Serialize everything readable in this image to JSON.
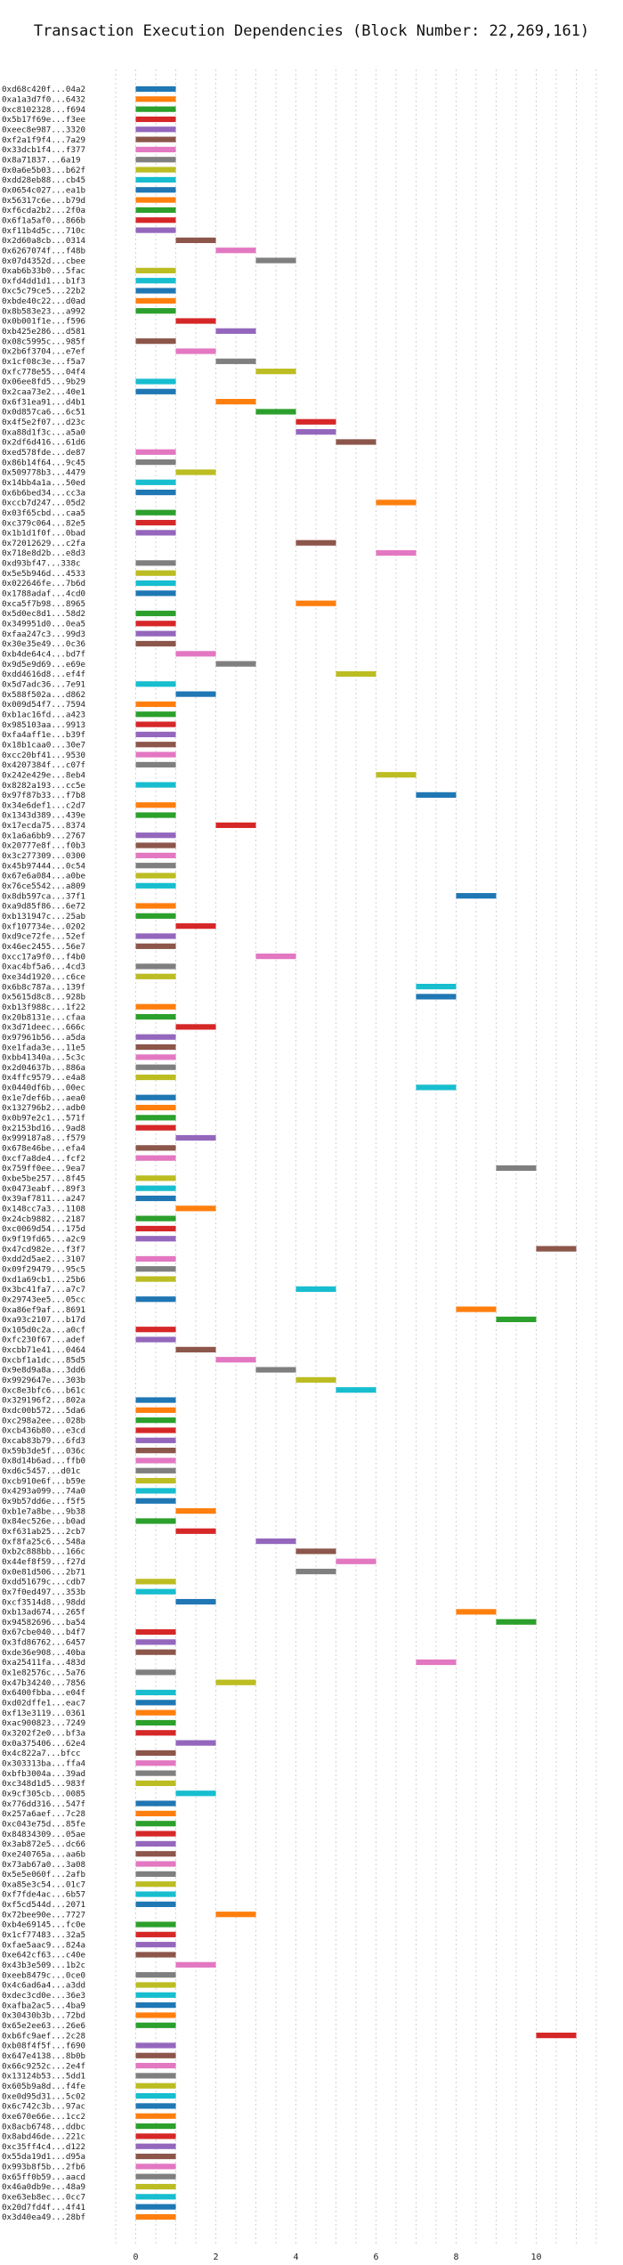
{
  "chart_data": {
    "type": "bar",
    "orientation": "horizontal",
    "title": "Transaction Execution Dependencies (Block Number: 22,269,161)",
    "xlabel": "",
    "ylabel": "",
    "xlim": [
      -0.5,
      11.5
    ],
    "xticks": [
      0,
      2,
      4,
      6,
      8,
      10
    ],
    "grid": true,
    "palette": [
      "#1f77b4",
      "#ff7f0e",
      "#2ca02c",
      "#d62728",
      "#9467bd",
      "#8c564b",
      "#e377c2",
      "#7f7f7f",
      "#bcbd22",
      "#17becf"
    ],
    "rows": [
      [
        "0xd68c420f...04a2",
        0
      ],
      [
        "0xa1a3d7f0...6432",
        0
      ],
      [
        "0xc8102328...f694",
        0
      ],
      [
        "0x5b17f69e...f3ee",
        0
      ],
      [
        "0xeec8e987...3320",
        0
      ],
      [
        "0xf2a1f9f4...7a29",
        0
      ],
      [
        "0x33dcb1f4...f377",
        0
      ],
      [
        "0x8a71837...6a19",
        0
      ],
      [
        "0x0a6e5b03...b62f",
        0
      ],
      [
        "0xdd28eb88...cb45",
        0
      ],
      [
        "0x0654c027...ea1b",
        0
      ],
      [
        "0x56317c6e...b79d",
        0
      ],
      [
        "0xf6cda2b2...2f0a",
        0
      ],
      [
        "0x6f1a5af0...866b",
        0
      ],
      [
        "0xf11b4d5c...710c",
        0
      ],
      [
        "0x2d60a8cb...0314",
        1
      ],
      [
        "0x6267074f...f48b",
        2
      ],
      [
        "0x07d4352d...cbee",
        3
      ],
      [
        "0xab6b33b0...5fac",
        0
      ],
      [
        "0xfd4dd1d1...b1f3",
        0
      ],
      [
        "0xc5c79ce5...22b2",
        0
      ],
      [
        "0xbde40c22...d0ad",
        0
      ],
      [
        "0x8b583e23...a992",
        0
      ],
      [
        "0x0b001f1e...f596",
        1
      ],
      [
        "0xb425e286...d581",
        2
      ],
      [
        "0x08c5995c...985f",
        0
      ],
      [
        "0x2b6f3704...e7ef",
        1
      ],
      [
        "0x1cf08c3e...f5a7",
        2
      ],
      [
        "0xfc778e55...04f4",
        3
      ],
      [
        "0x06ee8fd5...9b29",
        0
      ],
      [
        "0x2caa73e2...40e1",
        0
      ],
      [
        "0x6f31ea91...d4b1",
        2
      ],
      [
        "0x0d857ca6...6c51",
        3
      ],
      [
        "0x4f5e2f07...d23c",
        4
      ],
      [
        "0xa88d1f3c...a5a0",
        4
      ],
      [
        "0x2df6d416...61d6",
        5
      ],
      [
        "0xed578fde...de87",
        0
      ],
      [
        "0x86b14f64...9c45",
        0
      ],
      [
        "0x509778b3...4479",
        1
      ],
      [
        "0x14bb4a1a...50ed",
        0
      ],
      [
        "0x6b6bed34...cc3a",
        0
      ],
      [
        "0xccb7d247...05d2",
        6
      ],
      [
        "0x03f65cbd...caa5",
        0
      ],
      [
        "0xc379c064...82e5",
        0
      ],
      [
        "0x1b1d1f0f...0bad",
        0
      ],
      [
        "0x72012629...c2fa",
        4
      ],
      [
        "0x718e8d2b...e8d3",
        6
      ],
      [
        "0xd93bf47...338c",
        0
      ],
      [
        "0x5e5b946d...4533",
        0
      ],
      [
        "0x022646fe...7b6d",
        0
      ],
      [
        "0x1788adaf...4cd0",
        0
      ],
      [
        "0xca5f7b98...8965",
        4
      ],
      [
        "0x5d0ec8d1...58d2",
        0
      ],
      [
        "0x349951d0...0ea5",
        0
      ],
      [
        "0xfaa247c3...99d3",
        0
      ],
      [
        "0x30e35e49...0c36",
        0
      ],
      [
        "0xb4de64c4...bd7f",
        1
      ],
      [
        "0x9d5e9d69...e69e",
        2
      ],
      [
        "0xdd4616d8...ef4f",
        5
      ],
      [
        "0x5d7adc36...7e91",
        0
      ],
      [
        "0x588f502a...d862",
        1
      ],
      [
        "0x009d54f7...7594",
        0
      ],
      [
        "0xb1ac16fd...a423",
        0
      ],
      [
        "0x985103aa...9913",
        0
      ],
      [
        "0xfa4aff1e...b39f",
        0
      ],
      [
        "0x18b1caa0...30e7",
        0
      ],
      [
        "0xcc20bf41...9530",
        0
      ],
      [
        "0x4207384f...c07f",
        0
      ],
      [
        "0x242e429e...8eb4",
        6
      ],
      [
        "0x8282a193...cc5e",
        0
      ],
      [
        "0x97f87b33...f7b8",
        7
      ],
      [
        "0x34e6def1...c2d7",
        0
      ],
      [
        "0x1343d389...439e",
        0
      ],
      [
        "0x17ecda75...8374",
        2
      ],
      [
        "0x1a6a6bb9...2767",
        0
      ],
      [
        "0x20777e8f...f0b3",
        0
      ],
      [
        "0x3c277309...0300",
        0
      ],
      [
        "0x45b97444...0c54",
        0
      ],
      [
        "0x67e6a084...a0be",
        0
      ],
      [
        "0x76ce5542...a809",
        0
      ],
      [
        "0x8db597ca...37f1",
        8
      ],
      [
        "0xa9d85f86...6e72",
        0
      ],
      [
        "0xb131947c...25ab",
        0
      ],
      [
        "0xf107734e...0202",
        1
      ],
      [
        "0xd9ce72fe...52ef",
        0
      ],
      [
        "0x46ec2455...56e7",
        0
      ],
      [
        "0xcc17a9f0...f4b0",
        3
      ],
      [
        "0xac4bf5a6...4cd3",
        0
      ],
      [
        "0xe34d1920...c6ce",
        0
      ],
      [
        "0x6b8c787a...139f",
        7
      ],
      [
        "0x5615d8c8...928b",
        7
      ],
      [
        "0xb13f988c...1f22",
        0
      ],
      [
        "0x20b8131e...cfaa",
        0
      ],
      [
        "0x3d71deec...666c",
        1
      ],
      [
        "0x97961b56...a5da",
        0
      ],
      [
        "0xe1fada3e...11e5",
        0
      ],
      [
        "0xbb41340a...5c3c",
        0
      ],
      [
        "0x2d04637b...886a",
        0
      ],
      [
        "0x4ffc9579...e4a8",
        0
      ],
      [
        "0x0440df6b...00ec",
        7
      ],
      [
        "0x1e7def6b...aea0",
        0
      ],
      [
        "0x132796b2...adb0",
        0
      ],
      [
        "0x0b97e2c1...571f",
        0
      ],
      [
        "0x2153bd16...9ad8",
        0
      ],
      [
        "0x999187a8...f579",
        1
      ],
      [
        "0x678e46be...efa4",
        0
      ],
      [
        "0xcf7a8de4...fcf2",
        0
      ],
      [
        "0x759ff0ee...9ea7",
        9
      ],
      [
        "0xbe5be257...8f45",
        0
      ],
      [
        "0x0473eabf...89f3",
        0
      ],
      [
        "0x39af7811...a247",
        0
      ],
      [
        "0x148cc7a3...1108",
        1
      ],
      [
        "0x24cb9882...2187",
        0
      ],
      [
        "0xc0069d54...175d",
        0
      ],
      [
        "0x9f19fd65...a2c9",
        0
      ],
      [
        "0x47cd982e...f3f7",
        10
      ],
      [
        "0xdd2d5ae2...3107",
        0
      ],
      [
        "0x09f29479...95c5",
        0
      ],
      [
        "0xd1a69cb1...25b6",
        0
      ],
      [
        "0x3bc41fa7...a7c7",
        4
      ],
      [
        "0x29743ee5...05cc",
        0
      ],
      [
        "0xa86ef9af...8691",
        8
      ],
      [
        "0xa93c2107...b17d",
        9
      ],
      [
        "0x105d0c2a...a0cf",
        0
      ],
      [
        "0xfc230f67...adef",
        0
      ],
      [
        "0xcbb71e41...0464",
        1
      ],
      [
        "0xcbf1a1dc...85d5",
        2
      ],
      [
        "0x9e8d9a8a...3dd6",
        3
      ],
      [
        "0x9929647e...303b",
        4
      ],
      [
        "0xc8e3bfc6...b61c",
        5
      ],
      [
        "0x329196f2...802a",
        0
      ],
      [
        "0xdc00b572...5da6",
        0
      ],
      [
        "0xc298a2ee...028b",
        0
      ],
      [
        "0xcb436b80...e3cd",
        0
      ],
      [
        "0xcab83b79...6fd3",
        0
      ],
      [
        "0x59b3de5f...036c",
        0
      ],
      [
        "0x8d14b6ad...ffb0",
        0
      ],
      [
        "0xd6c5457...d01c",
        0
      ],
      [
        "0xcb910e6f...b59e",
        0
      ],
      [
        "0x4293a099...74a0",
        0
      ],
      [
        "0x9b57dd6e...f5f5",
        0
      ],
      [
        "0xb1e7a8be...9b38",
        1
      ],
      [
        "0x84ec526e...b0ad",
        0
      ],
      [
        "0xf631ab25...2cb7",
        1
      ],
      [
        "0xf8fa25c6...548a",
        3
      ],
      [
        "0xb2c888bb...166c",
        4
      ],
      [
        "0x44ef8f59...f27d",
        5
      ],
      [
        "0x0e81d506...2b71",
        4
      ],
      [
        "0xdd51679c...cdb7",
        0
      ],
      [
        "0x7f0ed497...353b",
        0
      ],
      [
        "0xcf3514d8...98dd",
        1
      ],
      [
        "0xb13ad674...265f",
        8
      ],
      [
        "0x94582696...ba54",
        9
      ],
      [
        "0x67cbe040...b4f7",
        0
      ],
      [
        "0x3fd86762...6457",
        0
      ],
      [
        "0xde36e908...40ba",
        0
      ],
      [
        "0xa25411fa...483d",
        7
      ],
      [
        "0x1e82576c...5a76",
        0
      ],
      [
        "0x47b34240...7856",
        2
      ],
      [
        "0x6400fbba...e04f",
        0
      ],
      [
        "0xd02dffe1...eac7",
        0
      ],
      [
        "0xf13e3119...0361",
        0
      ],
      [
        "0xac900823...7249",
        0
      ],
      [
        "0x3202f2e0...bf3a",
        0
      ],
      [
        "0x0a375406...62e4",
        1
      ],
      [
        "0x4c822a7...bfcc",
        0
      ],
      [
        "0x303313ba...ffa4",
        0
      ],
      [
        "0xbfb3004a...39ad",
        0
      ],
      [
        "0xc348d1d5...983f",
        0
      ],
      [
        "0x9cf305cb...0085",
        1
      ],
      [
        "0x776dd316...547f",
        0
      ],
      [
        "0x257a6aef...7c28",
        0
      ],
      [
        "0xc043e75d...85fe",
        0
      ],
      [
        "0x84834309...05ae",
        0
      ],
      [
        "0x3ab872e5...dc66",
        0
      ],
      [
        "0xe240765a...aa6b",
        0
      ],
      [
        "0x73ab67a0...3a08",
        0
      ],
      [
        "0x5e5e060f...2afb",
        0
      ],
      [
        "0xa85e3c54...01c7",
        0
      ],
      [
        "0xf7fde4ac...6b57",
        0
      ],
      [
        "0xf5cd544d...2071",
        0
      ],
      [
        "0x72bee90e...7727",
        2
      ],
      [
        "0xb4e69145...fc0e",
        0
      ],
      [
        "0x1cf77483...32a5",
        0
      ],
      [
        "0xfae5aac9...824a",
        0
      ],
      [
        "0xe642cf63...c40e",
        0
      ],
      [
        "0x43b3e509...1b2c",
        1
      ],
      [
        "0xeeb8479c...0ce0",
        0
      ],
      [
        "0x4c6ad6a4...a3dd",
        0
      ],
      [
        "0xdec3cd0e...36e3",
        0
      ],
      [
        "0xafba2ac5...4ba9",
        0
      ],
      [
        "0x30430b3b...72bd",
        0
      ],
      [
        "0x65e2ee63...26e6",
        0
      ],
      [
        "0xb6fc9aef...2c28",
        10
      ],
      [
        "0xb08f4f5f...f690",
        0
      ],
      [
        "0x647e4138...8b0b",
        0
      ],
      [
        "0x66c9252c...2e4f",
        0
      ],
      [
        "0x13124b53...5dd1",
        0
      ],
      [
        "0x605b9a8d...f4fe",
        0
      ],
      [
        "0xe0d95d31...5c02",
        0
      ],
      [
        "0x6c742c3b...97ac",
        0
      ],
      [
        "0xe670e66e...1cc2",
        0
      ],
      [
        "0x8acb6748...ddbc",
        0
      ],
      [
        "0x8abd46de...221c",
        0
      ],
      [
        "0xc35ff4c4...d122",
        0
      ],
      [
        "0x55da19d1...d95a",
        0
      ],
      [
        "0x993b8f5b...2fb6",
        0
      ],
      [
        "0x65ff0b59...aacd",
        0
      ],
      [
        "0x46a0db9e...48a9",
        0
      ],
      [
        "0xe63eb8ec...0cc7",
        0
      ],
      [
        "0x20d7fd4f...4f41",
        0
      ],
      [
        "0x3d40ea49...28bf",
        0
      ]
    ]
  }
}
